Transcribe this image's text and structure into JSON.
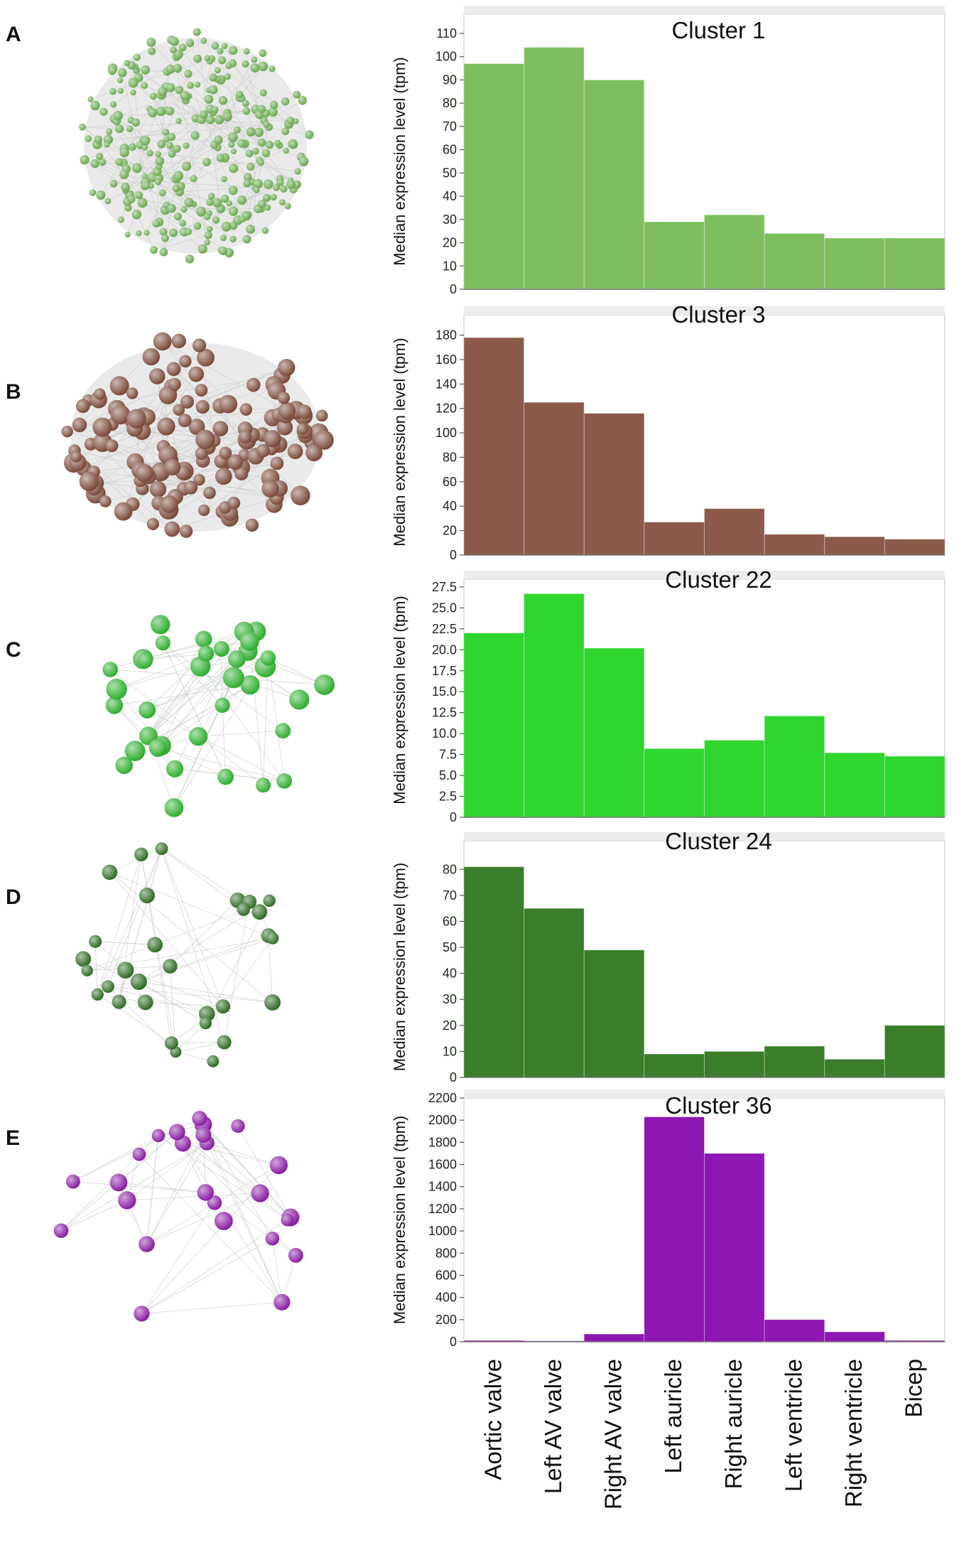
{
  "panels": [
    {
      "letter": "A",
      "node_color": "#6aa84f"
    },
    {
      "letter": "B",
      "node_color": "#7b4a3a"
    },
    {
      "letter": "C",
      "node_color": "#2fae2f"
    },
    {
      "letter": "D",
      "node_color": "#2e6b22"
    },
    {
      "letter": "E",
      "node_color": "#8a1da3"
    }
  ],
  "chart_data": [
    {
      "type": "bar",
      "title": "Cluster 1",
      "ylabel": "Median expression level (tpm)",
      "xlabel": "",
      "categories": [
        "Aortic valve",
        "Left AV valve",
        "Right AV valve",
        "Left auricle",
        "Right auricle",
        "Left ventricle",
        "Right ventricle",
        "Bicep"
      ],
      "values": [
        97,
        104,
        90,
        29,
        32,
        24,
        22,
        22
      ],
      "ylim": [
        0,
        110
      ],
      "yticks": [
        0,
        10,
        20,
        30,
        40,
        50,
        60,
        70,
        80,
        90,
        100,
        110
      ],
      "tick_labels": [
        "0",
        "10",
        "20",
        "30",
        "40",
        "50",
        "60",
        "70",
        "80",
        "90",
        "100",
        "110"
      ],
      "color": "#7dbf5f"
    },
    {
      "type": "bar",
      "title": "Cluster 3",
      "ylabel": "Median expression level (tpm)",
      "xlabel": "",
      "categories": [
        "Aortic valve",
        "Left AV valve",
        "Right AV valve",
        "Left auricle",
        "Right auricle",
        "Left ventricle",
        "Right ventricle",
        "Bicep"
      ],
      "values": [
        178,
        125,
        116,
        27,
        38,
        17,
        15,
        13
      ],
      "ylim": [
        0,
        185
      ],
      "yticks": [
        0,
        20,
        40,
        60,
        80,
        100,
        120,
        140,
        160,
        180
      ],
      "tick_labels": [
        "0",
        "20",
        "40",
        "60",
        "80",
        "100",
        "120",
        "140",
        "160",
        "180"
      ],
      "color": "#8c5a4a"
    },
    {
      "type": "bar",
      "title": "Cluster 22",
      "ylabel": "Median expression level (tpm)",
      "xlabel": "",
      "categories": [
        "Aortic valve",
        "Left AV valve",
        "Right AV valve",
        "Left auricle",
        "Right auricle",
        "Left ventricle",
        "Right ventricle",
        "Bicep"
      ],
      "values": [
        22.0,
        26.7,
        20.2,
        8.2,
        9.2,
        12.1,
        7.7,
        7.3
      ],
      "ylim": [
        0,
        28
      ],
      "yticks": [
        0,
        2.5,
        5,
        7.5,
        10,
        12.5,
        15,
        17.5,
        20,
        22.5,
        25,
        27.5
      ],
      "tick_labels": [
        "0",
        "2.5",
        "5.0",
        "7.5",
        "10.0",
        "12.5",
        "15.0",
        "17.5",
        "20.0",
        "22.5",
        "25.0",
        "27.5"
      ],
      "color": "#2ed62e"
    },
    {
      "type": "bar",
      "title": "Cluster 24",
      "ylabel": "Median expression level (tpm)",
      "xlabel": "",
      "categories": [
        "Aortic valve",
        "Left AV valve",
        "Right AV valve",
        "Left auricle",
        "Right auricle",
        "Left ventricle",
        "Right ventricle",
        "Bicep"
      ],
      "values": [
        81,
        65,
        49,
        9,
        10,
        12,
        7,
        20
      ],
      "ylim": [
        0,
        85
      ],
      "yticks": [
        0,
        10,
        20,
        30,
        40,
        50,
        60,
        70,
        80
      ],
      "tick_labels": [
        "0",
        "10",
        "20",
        "30",
        "40",
        "50",
        "60",
        "70",
        "80"
      ],
      "color": "#3a7d2a"
    },
    {
      "type": "bar",
      "title": "Cluster 36",
      "ylabel": "Median expression level (tpm)",
      "xlabel": "",
      "categories": [
        "Aortic valve",
        "Left AV valve",
        "Right AV valve",
        "Left auricle",
        "Right auricle",
        "Left ventricle",
        "Right ventricle",
        "Bicep"
      ],
      "values": [
        12,
        8,
        70,
        2030,
        1700,
        200,
        90,
        12
      ],
      "ylim": [
        0,
        2200
      ],
      "yticks": [
        0,
        200,
        400,
        600,
        800,
        1000,
        1200,
        1400,
        1600,
        1800,
        2000,
        2200
      ],
      "tick_labels": [
        "0",
        "200",
        "400",
        "600",
        "800",
        "1000",
        "1200",
        "1400",
        "1600",
        "1800",
        "2000",
        "2200"
      ],
      "color": "#8e16b3"
    }
  ]
}
